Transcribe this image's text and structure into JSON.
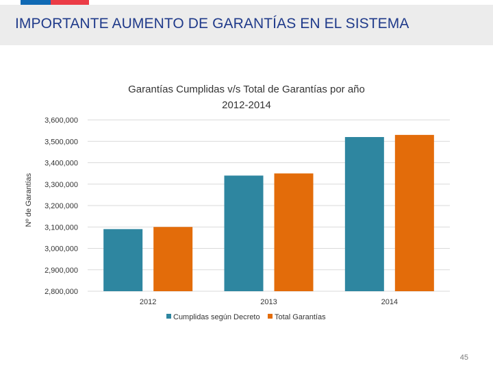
{
  "slide": {
    "title": "IMPORTANTE AUMENTO DE GARANTÍAS EN EL SISTEMA",
    "page_number": "45"
  },
  "colors": {
    "series_cumplidas": "#2e86a0",
    "series_total": "#e36c0a",
    "flag_blue": "#0f69b4",
    "flag_red": "#eb3c46",
    "title_text": "#1f3a8a"
  },
  "chart_data": {
    "type": "bar",
    "title": "Garantías Cumplidas v/s Total de Garantías por año",
    "subtitle": "2012-2014",
    "xlabel": "",
    "ylabel": "Nº de Garantías",
    "categories": [
      "2012",
      "2013",
      "2014"
    ],
    "series": [
      {
        "name": "Cumplidas según Decreto",
        "values": [
          3090000,
          3340000,
          3520000
        ]
      },
      {
        "name": "Total Garantías",
        "values": [
          3100000,
          3350000,
          3530000
        ]
      }
    ],
    "ylim": [
      2800000,
      3600000
    ],
    "yticks": [
      {
        "value": 3600000,
        "label": "3,600,000"
      },
      {
        "value": 3500000,
        "label": "3,500,000"
      },
      {
        "value": 3400000,
        "label": "3,400,000"
      },
      {
        "value": 3300000,
        "label": "3,300,000"
      },
      {
        "value": 3200000,
        "label": "3,200,000"
      },
      {
        "value": 3100000,
        "label": "3,100,000"
      },
      {
        "value": 3000000,
        "label": "3,000,000"
      },
      {
        "value": 2900000,
        "label": "2,900,000"
      },
      {
        "value": 2800000,
        "label": "2,800,000"
      }
    ],
    "legend_position": "bottom",
    "grid": true
  }
}
